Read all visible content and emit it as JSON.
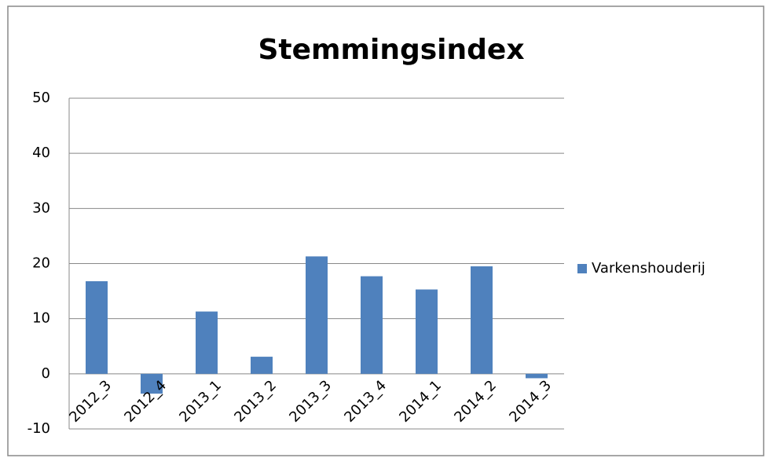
{
  "chart_data": {
    "type": "bar",
    "title": "Stemmingsindex",
    "categories": [
      "2012_3",
      "2012_4",
      "2013_1",
      "2013_2",
      "2013_3",
      "2013_4",
      "2014_1",
      "2014_2",
      "2014_3"
    ],
    "series": [
      {
        "name": "Varkenshouderij",
        "color": "#4f81bd",
        "values": [
          16.8,
          -3.6,
          11.3,
          3.1,
          21.3,
          17.7,
          15.3,
          19.5,
          -0.8
        ]
      }
    ],
    "ylim": [
      -10,
      50
    ],
    "yticks": [
      -10,
      0,
      10,
      20,
      30,
      40,
      50
    ],
    "grid": true,
    "legend": "right"
  }
}
